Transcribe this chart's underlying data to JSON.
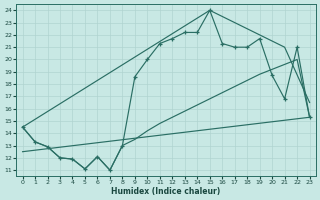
{
  "xlabel": "Humidex (Indice chaleur)",
  "bg_color": "#c8e8e4",
  "line_color": "#2a6e64",
  "grid_color": "#b0d4d0",
  "text_color": "#1a4840",
  "xlim": [
    -0.5,
    23.5
  ],
  "ylim": [
    10.5,
    24.5
  ],
  "xticks": [
    0,
    1,
    2,
    3,
    4,
    5,
    6,
    7,
    8,
    9,
    10,
    11,
    12,
    13,
    14,
    15,
    16,
    17,
    18,
    19,
    20,
    21,
    22,
    23
  ],
  "yticks": [
    11,
    12,
    13,
    14,
    15,
    16,
    17,
    18,
    19,
    20,
    21,
    22,
    23,
    24
  ],
  "curve_zigzag_x": [
    0,
    1,
    2,
    3,
    4,
    5,
    6,
    7,
    8,
    9,
    10,
    11,
    12,
    13,
    14,
    15,
    16,
    17,
    18,
    19,
    20,
    21,
    22,
    23
  ],
  "curve_zigzag_y": [
    14.5,
    13.3,
    12.9,
    12.0,
    11.9,
    11.1,
    12.1,
    11.0,
    13.0,
    18.6,
    20.0,
    21.3,
    21.7,
    22.2,
    22.2,
    24.0,
    21.3,
    21.0,
    21.0,
    21.7,
    18.7,
    16.8,
    21.0,
    15.3
  ],
  "curve_upper_x": [
    0,
    15,
    20,
    21,
    23
  ],
  "curve_upper_y": [
    14.5,
    24.0,
    21.5,
    21.0,
    16.5
  ],
  "curve_lower_x": [
    0,
    1,
    2,
    3,
    4,
    5,
    6,
    7,
    8,
    9,
    10,
    11,
    12,
    13,
    14,
    15,
    16,
    17,
    18,
    19,
    20,
    21,
    22,
    23
  ],
  "curve_lower_y": [
    14.5,
    13.3,
    12.9,
    12.0,
    11.9,
    11.1,
    12.1,
    11.0,
    13.0,
    13.5,
    14.2,
    14.8,
    15.3,
    15.8,
    16.3,
    16.8,
    17.3,
    17.8,
    18.3,
    18.8,
    19.2,
    19.6,
    20.0,
    15.3
  ],
  "curve_trend_x": [
    0,
    23
  ],
  "curve_trend_y": [
    12.5,
    15.3
  ]
}
